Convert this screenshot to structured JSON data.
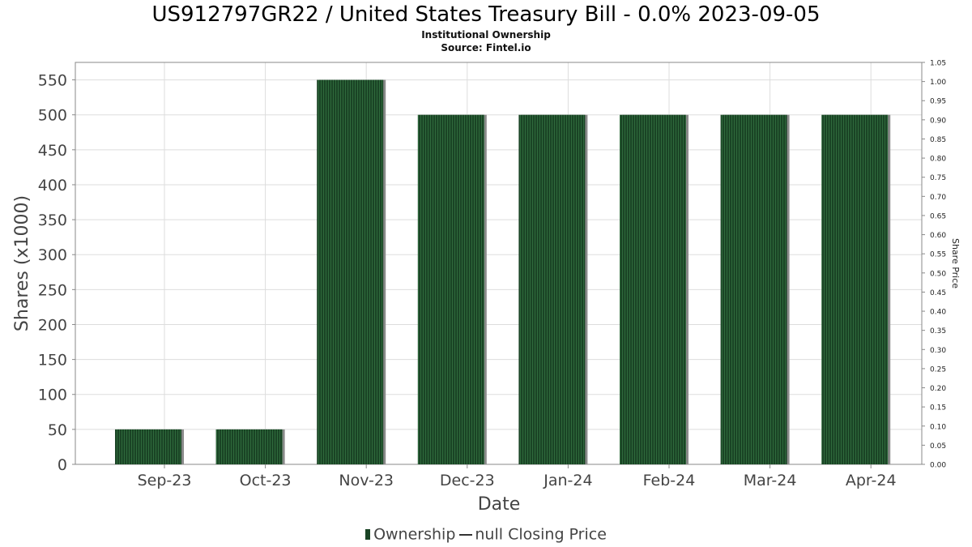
{
  "chart_data": {
    "type": "bar",
    "title": "US912797GR22 / United States Treasury Bill - 0.0% 2023-09-05",
    "subtitle_lines": [
      "Institutional Ownership",
      "Source: Fintel.io"
    ],
    "xlabel": "Date",
    "ylabel": "Shares (x1000)",
    "y2label": "Share Price",
    "categories": [
      "Sep-23",
      "Oct-23",
      "Nov-23",
      "Dec-23",
      "Jan-24",
      "Feb-24",
      "Mar-24",
      "Apr-24"
    ],
    "series": [
      {
        "name": "Ownership",
        "values": [
          50,
          50,
          550,
          500,
          500,
          500,
          500,
          500
        ]
      }
    ],
    "ylim": [
      0,
      575
    ],
    "yticks": [
      "0",
      "50",
      "100",
      "150",
      "200",
      "250",
      "300",
      "350",
      "400",
      "450",
      "500",
      "550"
    ],
    "y2lim": [
      0,
      1.05
    ],
    "y2ticks": [
      "0.00",
      "0.05",
      "0.10",
      "0.15",
      "0.20",
      "0.25",
      "0.30",
      "0.35",
      "0.40",
      "0.45",
      "0.50",
      "0.55",
      "0.60",
      "0.65",
      "0.70",
      "0.75",
      "0.80",
      "0.85",
      "0.90",
      "0.95",
      "1.00",
      "1.05"
    ],
    "grid": true,
    "legend_position": "bottom",
    "legend": {
      "bar_label": "Ownership",
      "line_label": "null Closing Price"
    },
    "colors": {
      "bar": "#1a4425",
      "bar_stripe": "#2f6a3c",
      "bar_shadow": "#8a8a8a",
      "grid": "#dddddd",
      "axis": "#888888"
    }
  }
}
